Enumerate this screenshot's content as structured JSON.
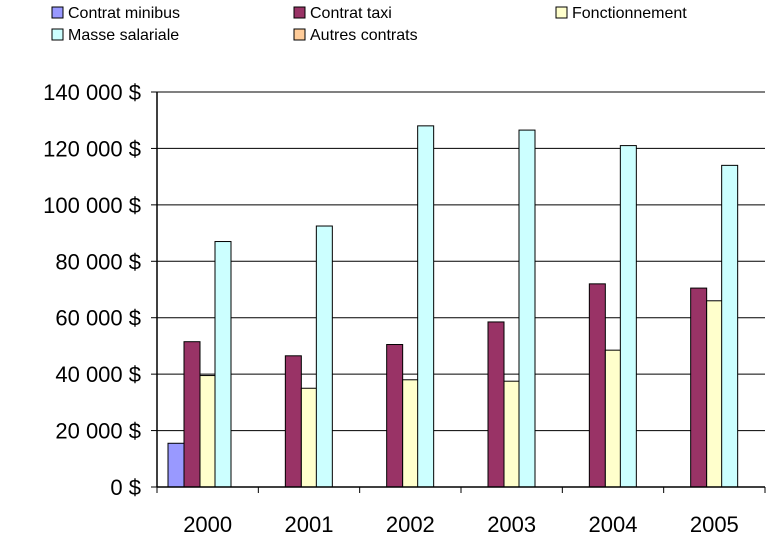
{
  "chart_data": {
    "type": "bar",
    "title": "",
    "xlabel": "",
    "ylabel": "",
    "categories": [
      "2000",
      "2001",
      "2002",
      "2003",
      "2004",
      "2005"
    ],
    "ylim": [
      0,
      140000
    ],
    "y_tick_labels": [
      "0 $",
      "20 000 $",
      "40 000 $",
      "60 000 $",
      "80 000 $",
      "100 000 $",
      "120 000 $",
      "140 000 $"
    ],
    "grid": true,
    "legend_position": "top",
    "series": [
      {
        "name": "Contrat minibus",
        "color": "#9999FF",
        "values": [
          15500,
          0,
          0,
          0,
          0,
          0
        ]
      },
      {
        "name": "Contrat taxi",
        "color": "#993366",
        "values": [
          51500,
          46500,
          50500,
          58500,
          72000,
          70500
        ]
      },
      {
        "name": "Fonctionnement",
        "color": "#FFFFCC",
        "values": [
          39500,
          35000,
          38000,
          37500,
          48500,
          66000
        ]
      },
      {
        "name": "Masse salariale",
        "color": "#CCFFFF",
        "values": [
          87000,
          92500,
          128000,
          126500,
          121000,
          114000
        ]
      },
      {
        "name": "Autres contrats",
        "color": "#FFCC99",
        "values": [
          0,
          0,
          0,
          0,
          0,
          0
        ]
      }
    ]
  }
}
